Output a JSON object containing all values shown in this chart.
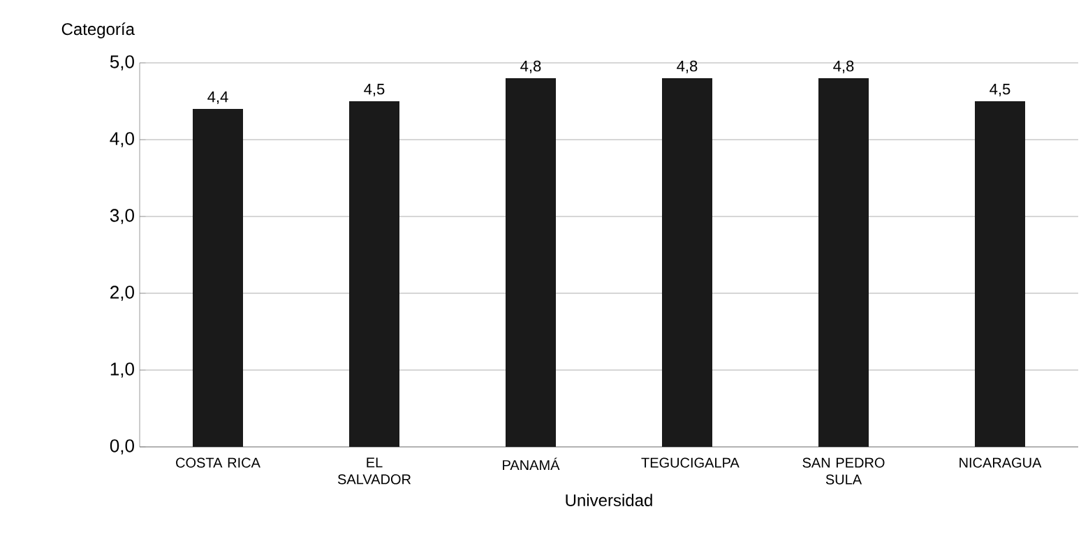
{
  "chart_data": {
    "type": "bar",
    "xlabel": "Universidad",
    "ylabel": "Categoría",
    "categories": [
      "COSTA RICA",
      "EL SALVADOR",
      "PANAMÁ",
      "TEGUCIGALPA",
      "SAN PEDRO SULA",
      "NICARAGUA"
    ],
    "values": [
      4.4,
      4.5,
      4.8,
      4.8,
      4.8,
      4.5
    ],
    "value_labels": [
      "4,4",
      "4,5",
      "4,8",
      "4,8",
      "4,8",
      "4,5"
    ],
    "color": "#1a1a1a",
    "ylim": [
      0,
      5
    ],
    "yticks": [
      {
        "value": 0,
        "label": "0,0"
      },
      {
        "value": 1,
        "label": "1,0"
      },
      {
        "value": 2,
        "label": "2,0"
      },
      {
        "value": 3,
        "label": "3,0"
      },
      {
        "value": 4,
        "label": "4,0"
      },
      {
        "value": 5,
        "label": "5,0"
      }
    ],
    "grid": "y"
  }
}
